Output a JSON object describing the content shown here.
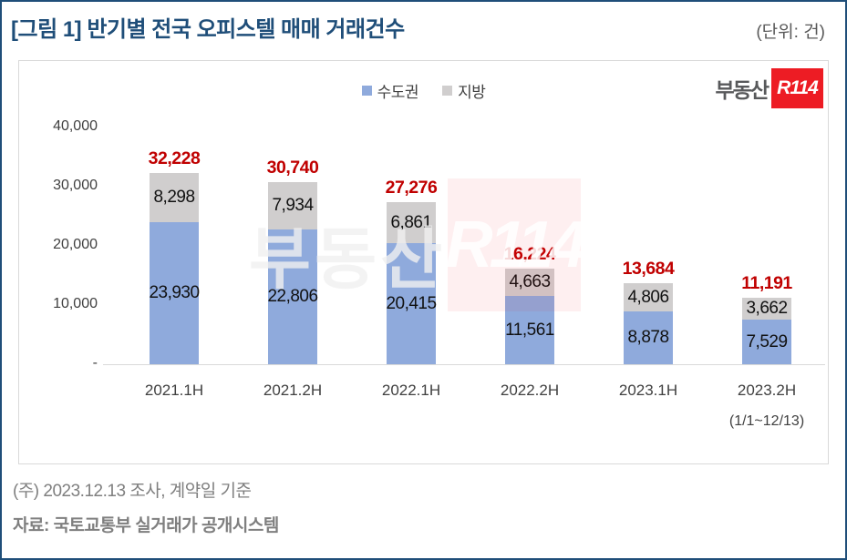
{
  "header": {
    "title": "[그림 1] 반기별 전국 오피스텔 매매 거래건수",
    "unit_label": "(단위: 건)"
  },
  "logo": {
    "text": "부동산",
    "badge": "R114"
  },
  "watermark": {
    "text": "부동산",
    "badge": "R114"
  },
  "chart_data": {
    "type": "bar",
    "stacked": true,
    "title": "반기별 전국 오피스텔 매매 거래건수",
    "unit": "건",
    "categories": [
      "2021.1H",
      "2021.2H",
      "2022.1H",
      "2022.2H",
      "2023.1H",
      "2023.2H"
    ],
    "category_note": {
      "index": 5,
      "text": "(1/1~12/13)"
    },
    "series": [
      {
        "name": "수도권",
        "color": "#8FAADC",
        "values": [
          23930,
          22806,
          20415,
          11561,
          8878,
          7529
        ]
      },
      {
        "name": "지방",
        "color": "#D0CECE",
        "values": [
          8298,
          7934,
          6861,
          4663,
          4806,
          3662
        ]
      }
    ],
    "totals": [
      32228,
      30740,
      27276,
      16224,
      13684,
      11191
    ],
    "total_label_color": "#C00000",
    "y_ticks": [
      {
        "value": 40000,
        "label": "40,000"
      },
      {
        "value": 30000,
        "label": "30,000"
      },
      {
        "value": 20000,
        "label": "20,000"
      },
      {
        "value": 10000,
        "label": "10,000"
      },
      {
        "value": 0,
        "label": "-"
      }
    ],
    "ylim": [
      0,
      40000
    ],
    "grid": false,
    "legend_position": "top-center"
  },
  "footer": {
    "note": "(주) 2023.12.13 조사, 계약일 기준",
    "source": "자료: 국토교통부 실거래가 공개시스템"
  }
}
